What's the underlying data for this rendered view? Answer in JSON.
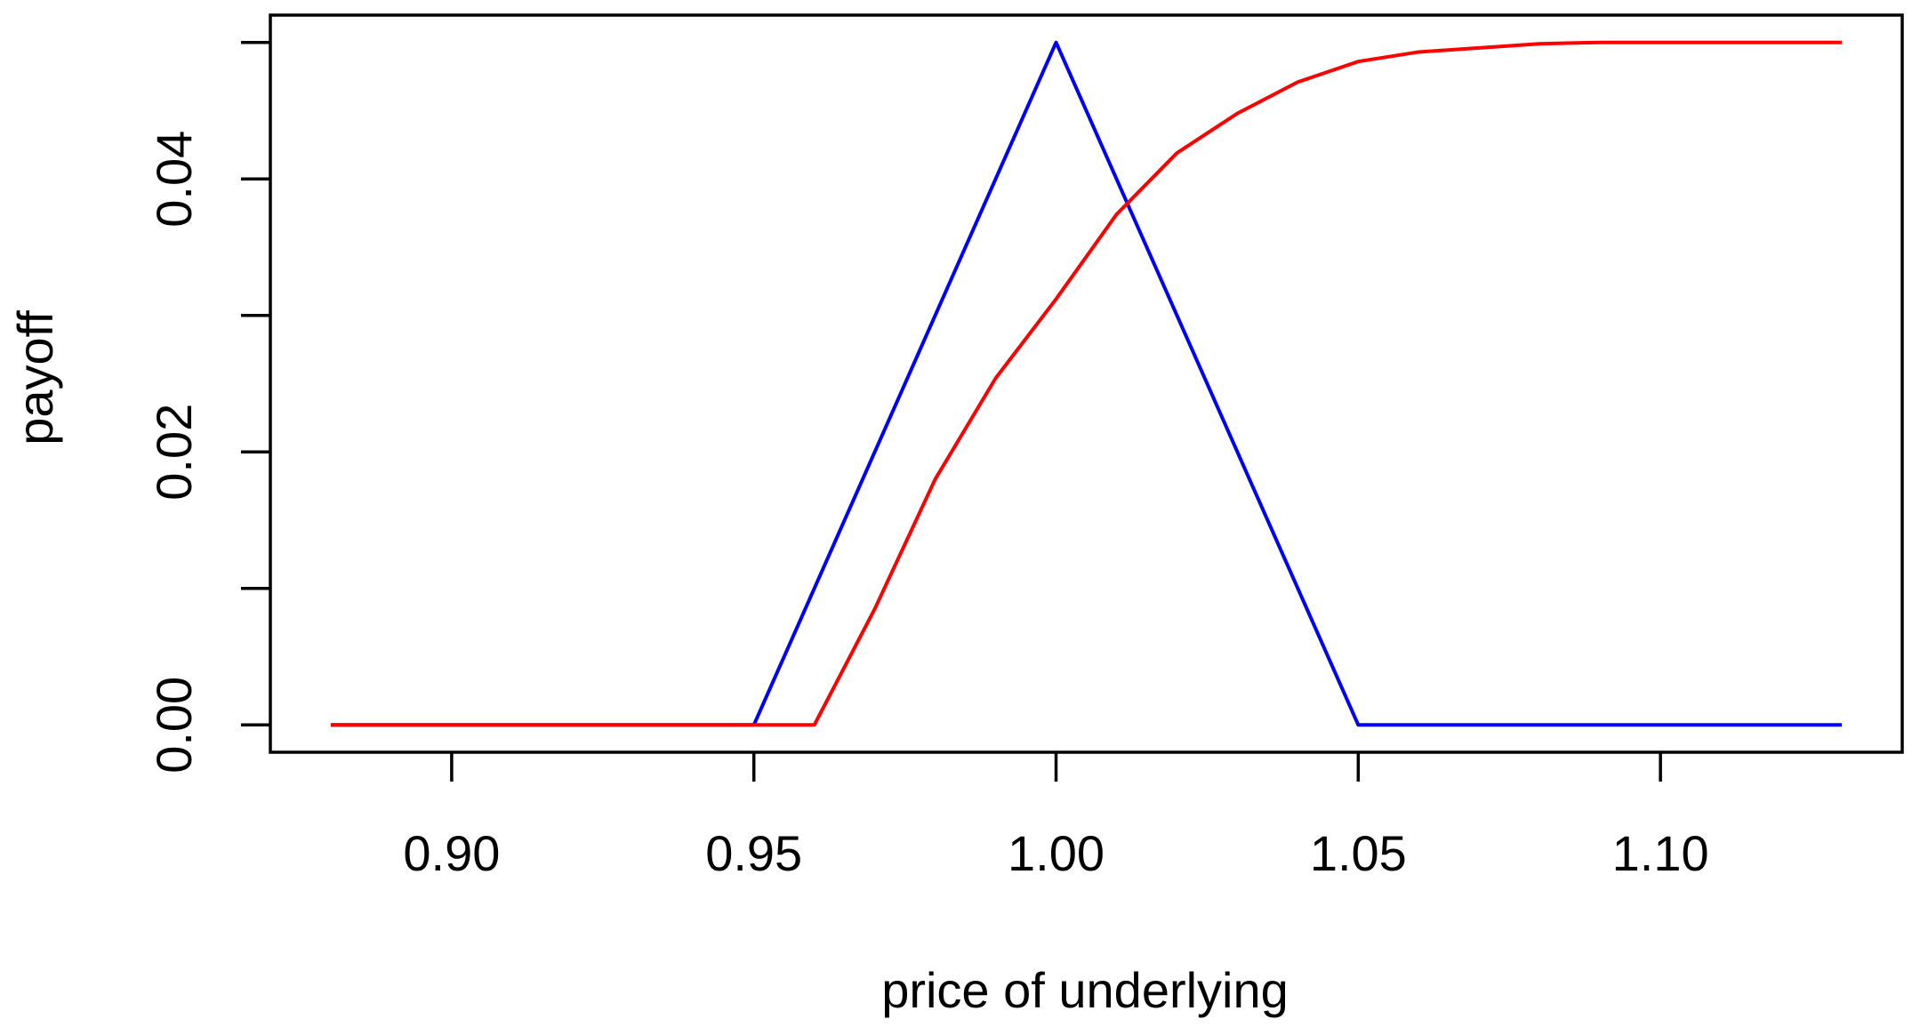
{
  "chart_data": {
    "type": "line",
    "xlabel": "price of underlying",
    "ylabel": "payoff",
    "xlim": [
      0.87,
      1.14
    ],
    "ylim": [
      -0.002,
      0.052
    ],
    "xticks": [
      {
        "value": 0.9,
        "label": "0.90"
      },
      {
        "value": 0.95,
        "label": "0.95"
      },
      {
        "value": 1.0,
        "label": "1.00"
      },
      {
        "value": 1.05,
        "label": "1.05"
      },
      {
        "value": 1.1,
        "label": "1.10"
      }
    ],
    "yticks": [
      {
        "value": 0,
        "label": "0.00"
      },
      {
        "value": 0.01,
        "label": null
      },
      {
        "value": 0.02,
        "label": "0.02"
      },
      {
        "value": 0.03,
        "label": null
      },
      {
        "value": 0.04,
        "label": "0.04"
      },
      {
        "value": 0.05,
        "label": null
      }
    ],
    "grid": false,
    "series": [
      {
        "color": "#0000ff",
        "x": [
          0.88,
          0.95,
          1.0,
          1.05,
          1.13
        ],
        "values": [
          0,
          0,
          0.05,
          0,
          0
        ]
      },
      {
        "color": "#ff0000",
        "x": [
          0.88,
          0.96,
          0.97,
          0.98,
          0.99,
          1.0,
          1.01,
          1.02,
          1.03,
          1.04,
          1.05,
          1.06,
          1.07,
          1.08,
          1.09,
          1.13
        ],
        "values": [
          0,
          0,
          0.0085,
          0.018,
          0.0254,
          0.0312,
          0.0374,
          0.0419,
          0.0448,
          0.0471,
          0.0486,
          0.0493,
          0.0496,
          0.0499,
          0.05,
          0.05
        ]
      }
    ]
  }
}
